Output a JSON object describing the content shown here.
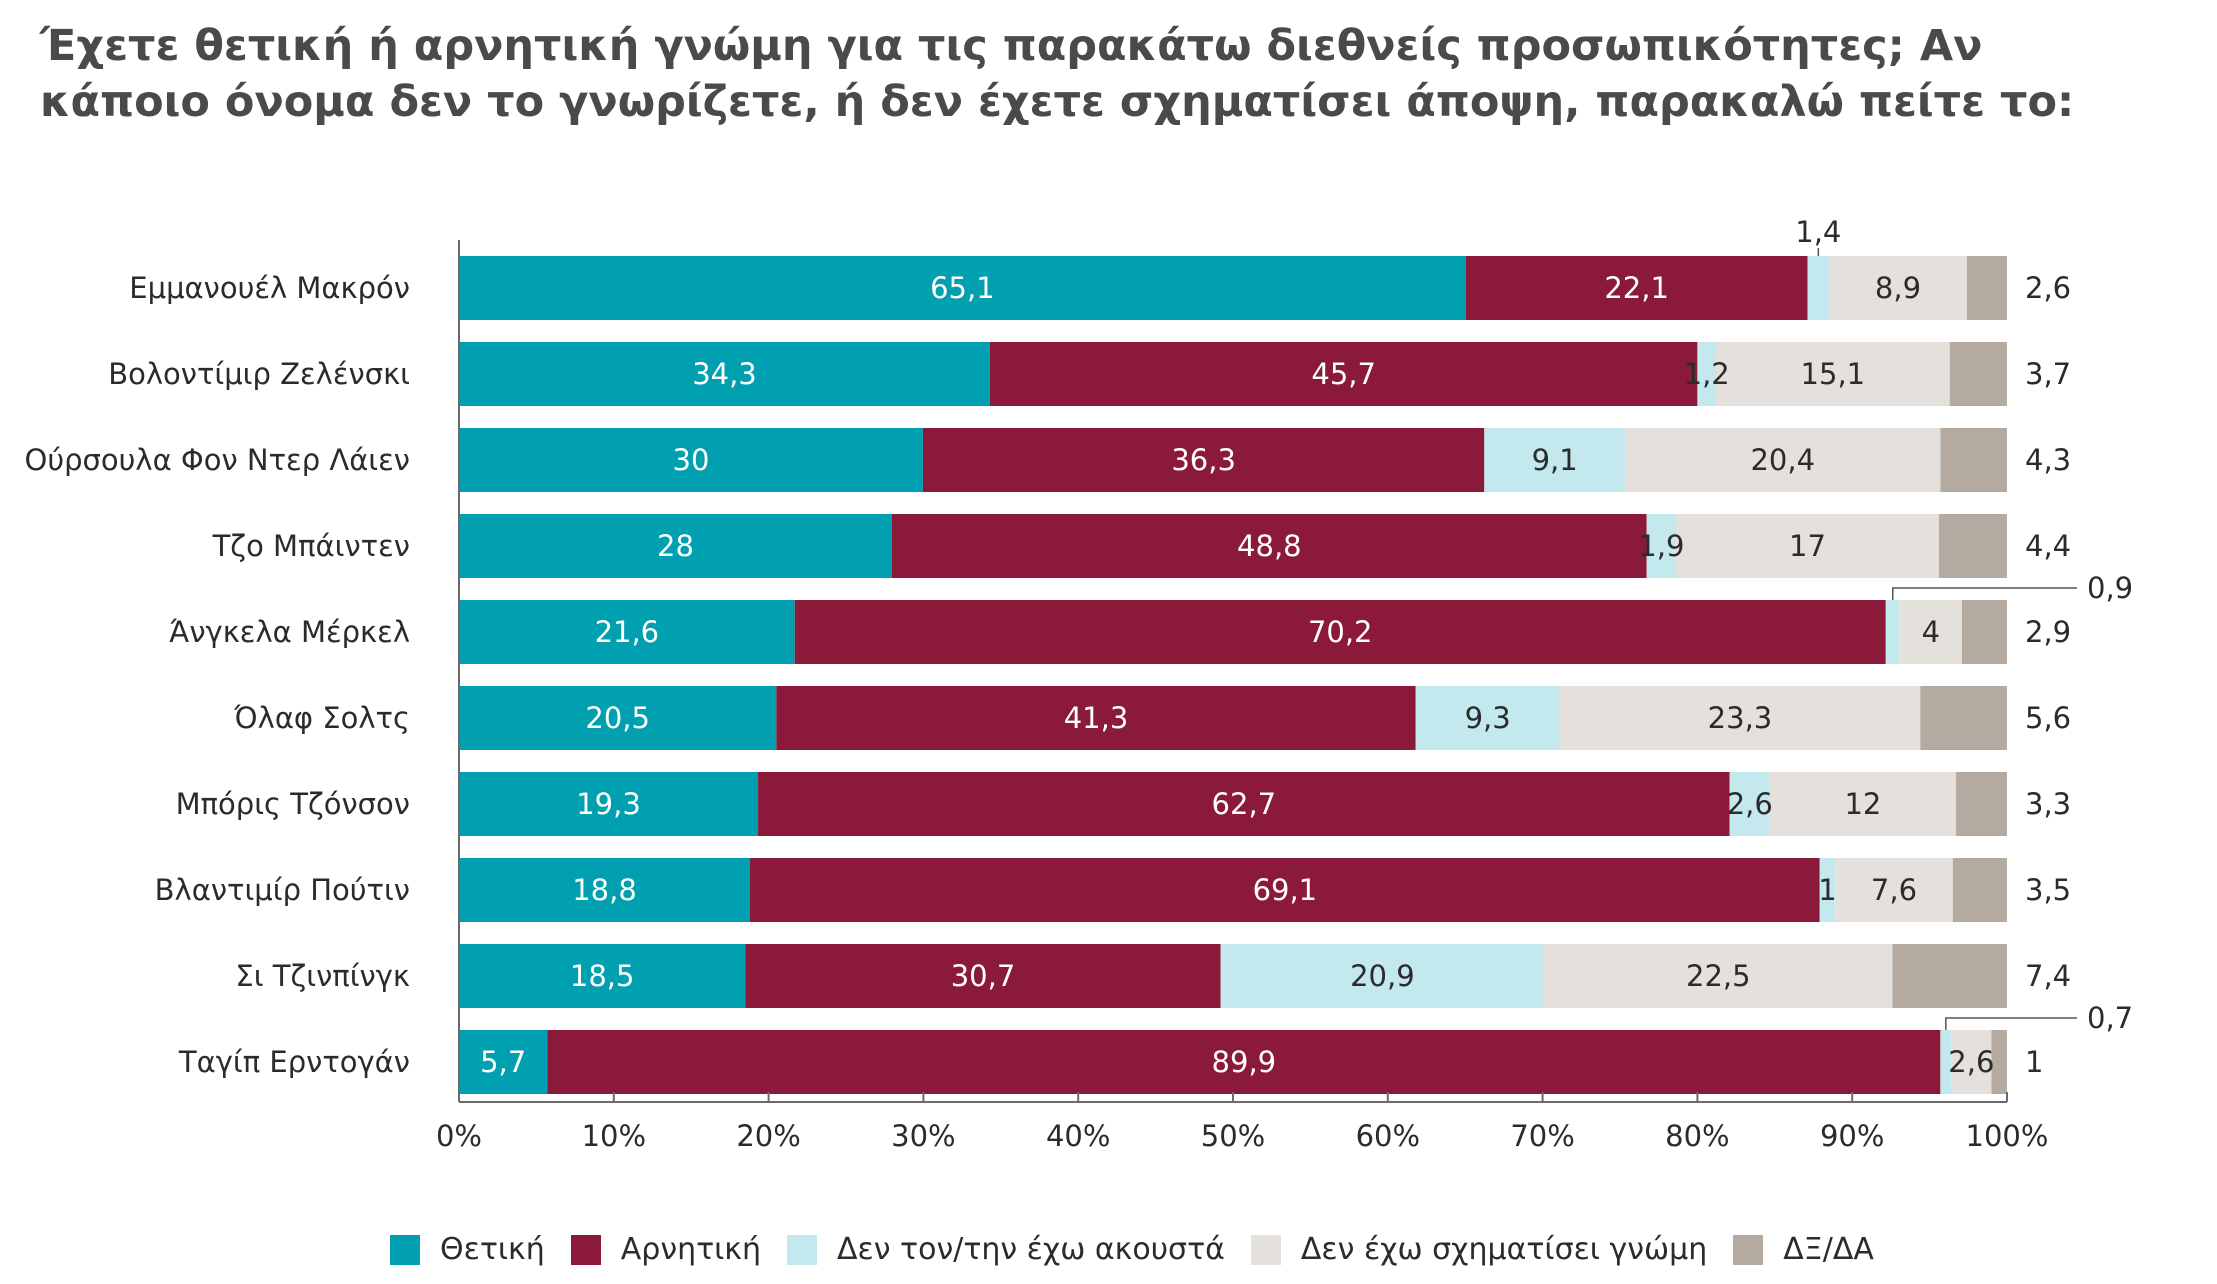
{
  "title": "Έχετε θετική ή αρνητική γνώμη για τις παρακάτω διεθνείς προσωπικότητες; Αν\n κάποιο όνομα δεν το γνωρίζετε, ή δεν έχετε σχηματίσει άποψη, παρακαλώ πείτε το:",
  "chart_data": {
    "type": "bar",
    "orientation": "horizontal",
    "stacked": true,
    "categories": [
      "Εμμανουέλ Μακρόν",
      "Βολοντίμιρ Ζελένσκι",
      "Ούρσουλα Φον Ντερ Λάιεν",
      "Τζο Μπάιντεν",
      "Άνγκελα Μέρκελ",
      "Όλαφ Σολτς",
      "Μπόρις Τζόνσον",
      "Βλαντιμίρ Πούτιν",
      "Σι Τζινπίνγκ",
      "Ταγίπ Ερντογάν"
    ],
    "series": [
      {
        "name": "Θετική",
        "color": "#00a0b0",
        "label_color": "#ffffff",
        "values": [
          65.1,
          34.3,
          30,
          28,
          21.6,
          20.5,
          19.3,
          18.8,
          18.5,
          5.7
        ],
        "labels": [
          "65,1",
          "34,3",
          "30",
          "28",
          "21,6",
          "20,5",
          "19,3",
          "18,8",
          "18,5",
          "5,7"
        ]
      },
      {
        "name": "Αρνητική",
        "color": "#8b1a3a",
        "label_color": "#ffffff",
        "values": [
          22.1,
          45.7,
          36.3,
          48.8,
          70.2,
          41.3,
          62.7,
          69.1,
          30.7,
          89.9
        ],
        "labels": [
          "22,1",
          "45,7",
          "36,3",
          "48,8",
          "70,2",
          "41,3",
          "62,7",
          "69,1",
          "30,7",
          "89,9"
        ]
      },
      {
        "name": "Δεν τον/την έχω ακουστά",
        "color": "#c3e9ee",
        "label_color": "#2b2b2b",
        "values": [
          1.4,
          1.2,
          9.1,
          1.9,
          0.9,
          9.3,
          2.6,
          1,
          20.9,
          0.7
        ],
        "labels": [
          "1,4",
          "1,2",
          "9,1",
          "1,9",
          "0,9",
          "9,3",
          "2,6",
          "1",
          "20,9",
          "0,7"
        ]
      },
      {
        "name": "Δεν έχω σχηματίσει γνώμη",
        "color": "#e4e0dc",
        "label_color": "#2b2b2b",
        "values": [
          8.9,
          15.1,
          20.4,
          17,
          4,
          23.3,
          12,
          7.6,
          22.5,
          2.6
        ],
        "labels": [
          "8,9",
          "15,1",
          "20,4",
          "17",
          "4",
          "23,3",
          "12",
          "7,6",
          "22,5",
          "2,6"
        ]
      },
      {
        "name": "ΔΞ/ΔΑ",
        "color": "#b5aa9f",
        "label_color": "#2b2b2b",
        "values": [
          2.6,
          3.7,
          4.3,
          4.4,
          2.9,
          5.6,
          3.3,
          3.5,
          7.4,
          1
        ],
        "labels": [
          "2,6",
          "3,7",
          "4,3",
          "4,4",
          "2,9",
          "5,6",
          "3,3",
          "3,5",
          "7,4",
          "1"
        ]
      }
    ],
    "xlim": [
      0,
      100
    ],
    "xticks": [
      "0%",
      "10%",
      "20%",
      "30%",
      "40%",
      "50%",
      "60%",
      "70%",
      "80%",
      "90%",
      "100%"
    ],
    "grid": false,
    "legend_position": "bottom"
  }
}
